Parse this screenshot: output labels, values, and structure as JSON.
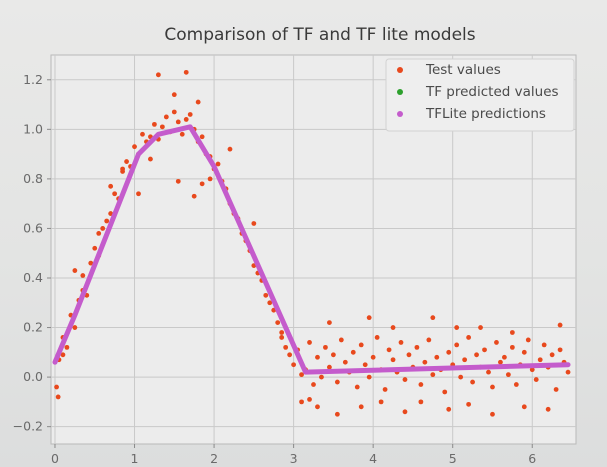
{
  "chart_data": {
    "type": "scatter",
    "title": "Comparison of TF and TF lite models",
    "xlabel": "",
    "ylabel": "",
    "xlim": [
      -0.05,
      6.55
    ],
    "ylim": [
      -0.27,
      1.3
    ],
    "x_ticks": [
      0,
      1,
      2,
      3,
      4,
      5,
      6
    ],
    "y_ticks": [
      -0.2,
      0.0,
      0.2,
      0.4,
      0.6,
      0.8,
      1.0,
      1.2
    ],
    "x_tick_labels": [
      "0",
      "1",
      "2",
      "3",
      "4",
      "5",
      "6"
    ],
    "y_tick_labels": [
      "−0.2",
      "0.0",
      "0.2",
      "0.4",
      "0.6",
      "0.8",
      "1.0",
      "1.2"
    ],
    "grid": true,
    "legend_position": "top-right",
    "legend": [
      "Test values",
      "TF predicted values",
      "TFLite predictions"
    ],
    "colors": {
      "test": "#e8491d",
      "tf": "#2ca02c",
      "tflite": "#c45ccc"
    },
    "series": [
      {
        "name": "Test values",
        "kind": "scatter",
        "x": [
          0.05,
          0.1,
          0.15,
          0.2,
          0.25,
          0.3,
          0.35,
          0.4,
          0.45,
          0.5,
          0.55,
          0.6,
          0.65,
          0.7,
          0.75,
          0.8,
          0.85,
          0.9,
          0.95,
          1.0,
          1.05,
          1.1,
          1.15,
          1.2,
          1.25,
          1.3,
          1.35,
          1.4,
          1.45,
          1.5,
          1.55,
          1.6,
          1.65,
          1.7,
          1.75,
          1.8,
          1.85,
          1.9,
          1.95,
          2.0,
          2.05,
          2.1,
          2.15,
          2.2,
          2.25,
          2.3,
          2.35,
          2.4,
          2.45,
          2.5,
          2.55,
          2.6,
          2.65,
          2.7,
          2.75,
          2.8,
          2.85,
          2.9,
          2.95,
          3.0,
          3.05,
          3.1,
          3.15,
          3.2,
          3.25,
          3.3,
          3.35,
          3.4,
          3.45,
          3.5,
          3.55,
          3.6,
          3.65,
          3.7,
          3.75,
          3.8,
          3.85,
          3.9,
          3.95,
          4.0,
          4.05,
          4.1,
          4.15,
          4.2,
          4.25,
          4.3,
          4.35,
          4.4,
          4.45,
          4.5,
          4.55,
          4.6,
          4.65,
          4.7,
          4.75,
          4.8,
          4.85,
          4.9,
          4.95,
          5.0,
          5.05,
          5.1,
          5.15,
          5.2,
          5.25,
          5.3,
          5.35,
          5.4,
          5.45,
          5.5,
          5.55,
          5.6,
          5.65,
          5.7,
          5.75,
          5.8,
          5.85,
          5.9,
          5.95,
          6.0,
          6.05,
          6.1,
          6.15,
          6.2,
          6.25,
          6.3,
          6.35,
          6.4,
          6.45,
          1.3,
          1.65,
          1.5,
          1.8,
          1.55,
          1.75,
          1.05,
          1.85,
          0.25,
          0.02,
          0.04,
          0.1,
          3.3,
          3.55,
          3.85,
          4.1,
          4.4,
          4.6,
          4.95,
          5.2,
          5.5,
          5.9,
          6.2,
          3.45,
          5.35,
          4.75,
          3.2,
          4.25,
          5.75,
          6.35,
          3.1,
          2.85,
          0.55,
          0.7,
          1.2,
          2.2,
          2.5,
          0.85,
          0.35,
          1.95,
          3.95,
          5.05
        ],
        "y": [
          0.07,
          0.16,
          0.12,
          0.25,
          0.2,
          0.31,
          0.35,
          0.33,
          0.46,
          0.52,
          0.49,
          0.6,
          0.63,
          0.66,
          0.74,
          0.72,
          0.83,
          0.87,
          0.85,
          0.93,
          0.9,
          0.98,
          0.95,
          0.97,
          1.02,
          0.96,
          1.01,
          1.05,
          0.99,
          1.07,
          1.03,
          0.98,
          1.04,
          1.06,
          1.0,
          0.95,
          0.97,
          0.9,
          0.89,
          0.84,
          0.86,
          0.79,
          0.76,
          0.7,
          0.66,
          0.64,
          0.58,
          0.55,
          0.51,
          0.45,
          0.42,
          0.39,
          0.33,
          0.3,
          0.27,
          0.22,
          0.16,
          0.12,
          0.09,
          0.05,
          0.11,
          0.01,
          0.03,
          0.14,
          -0.03,
          0.08,
          0.0,
          0.12,
          0.04,
          0.09,
          -0.02,
          0.15,
          0.06,
          0.02,
          0.1,
          -0.04,
          0.13,
          0.05,
          0.0,
          0.08,
          0.16,
          0.03,
          -0.05,
          0.11,
          0.07,
          0.02,
          0.14,
          -0.01,
          0.09,
          0.04,
          0.12,
          -0.03,
          0.06,
          0.15,
          0.01,
          0.08,
          0.03,
          -0.06,
          0.1,
          0.05,
          0.13,
          0.0,
          0.07,
          0.16,
          -0.02,
          0.09,
          0.04,
          0.11,
          0.02,
          -0.04,
          0.14,
          0.06,
          0.08,
          0.01,
          0.12,
          -0.03,
          0.05,
          0.1,
          0.15,
          0.03,
          -0.01,
          0.07,
          0.13,
          0.04,
          0.09,
          -0.05,
          0.11,
          0.06,
          0.02,
          1.22,
          1.23,
          1.14,
          1.11,
          0.79,
          0.73,
          0.74,
          0.78,
          0.43,
          -0.04,
          -0.08,
          0.09,
          -0.12,
          -0.15,
          -0.12,
          -0.1,
          -0.14,
          -0.1,
          -0.13,
          -0.11,
          -0.15,
          -0.12,
          -0.13,
          0.22,
          0.2,
          0.24,
          -0.09,
          0.2,
          0.18,
          0.21,
          -0.1,
          0.18,
          0.58,
          0.77,
          0.88,
          0.92,
          0.62,
          0.84,
          0.41,
          0.8,
          0.24,
          0.2
        ]
      },
      {
        "name": "TF predicted values",
        "kind": "line",
        "x": [
          0.0,
          0.25,
          1.05,
          1.3,
          1.7,
          2.0,
          3.15,
          6.45
        ],
        "y": [
          0.06,
          0.25,
          0.9,
          0.98,
          1.01,
          0.85,
          0.02,
          0.05
        ]
      },
      {
        "name": "TFLite predictions",
        "kind": "line",
        "x": [
          0.0,
          0.25,
          1.05,
          1.3,
          1.7,
          2.0,
          3.15,
          6.45
        ],
        "y": [
          0.06,
          0.25,
          0.9,
          0.98,
          1.01,
          0.85,
          0.02,
          0.05
        ]
      }
    ]
  }
}
